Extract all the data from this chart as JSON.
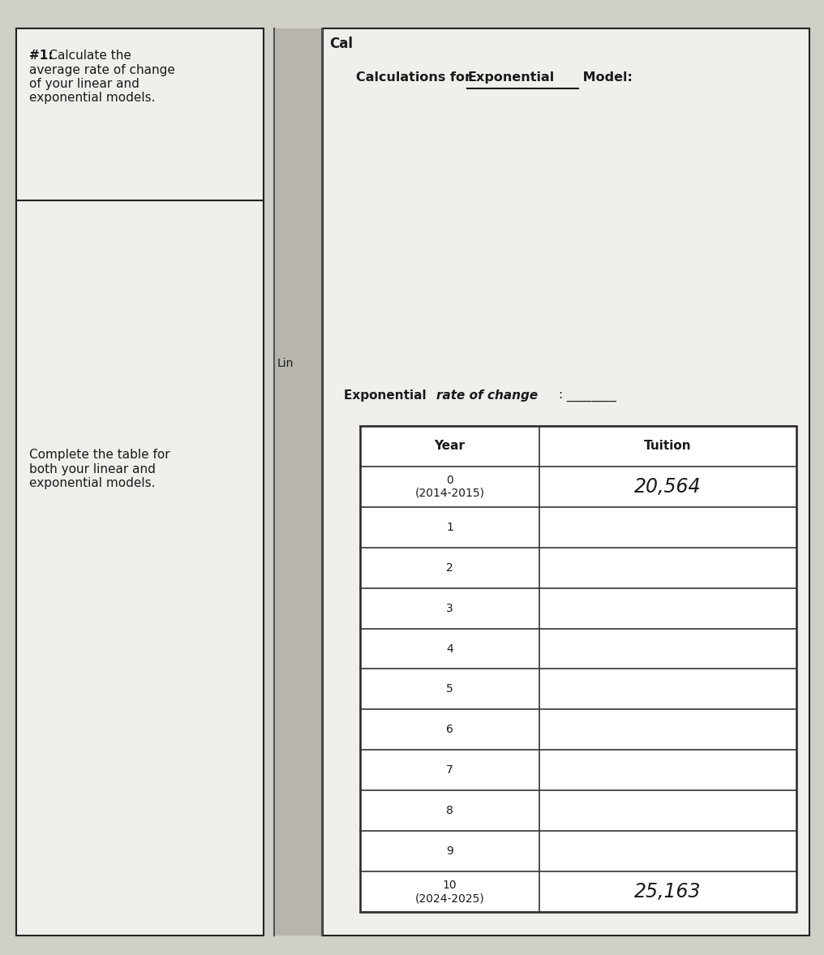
{
  "bg_color": "#d0cfc8",
  "left_panel_bg": "#f0efeb",
  "right_panel_bg": "#f0efeb",
  "left_title_bold": "#1:",
  "left_title_rest": " Calculate the average rate of change of your linear and exponential models.",
  "left_bottom_text": "Complete the table for\nboth your linear and\nexponential models.",
  "calc_header_part1": "Calculations for ",
  "calc_header_underlined": "Exponential",
  "calc_header_part2": " Model:",
  "lin_label": "Lin",
  "exp_rate_part1": "Exponential ",
  "exp_rate_part2": "rate of change",
  "exp_rate_part3": ": ________",
  "table_headers": [
    "Year",
    "Tuition"
  ],
  "table_rows": [
    [
      "0\n(2014-2015)",
      "20,564"
    ],
    [
      "1",
      ""
    ],
    [
      "2",
      ""
    ],
    [
      "3",
      ""
    ],
    [
      "4",
      ""
    ],
    [
      "5",
      ""
    ],
    [
      "6",
      ""
    ],
    [
      "7",
      ""
    ],
    [
      "8",
      ""
    ],
    [
      "9",
      ""
    ],
    [
      "10\n(2024-2025)",
      "25,163"
    ]
  ],
  "handwritten_color": "#1a1a1a",
  "printed_color": "#1a1a1a",
  "line_color": "#333333",
  "border_color": "#222222",
  "binding_color": "#b8b5ae"
}
